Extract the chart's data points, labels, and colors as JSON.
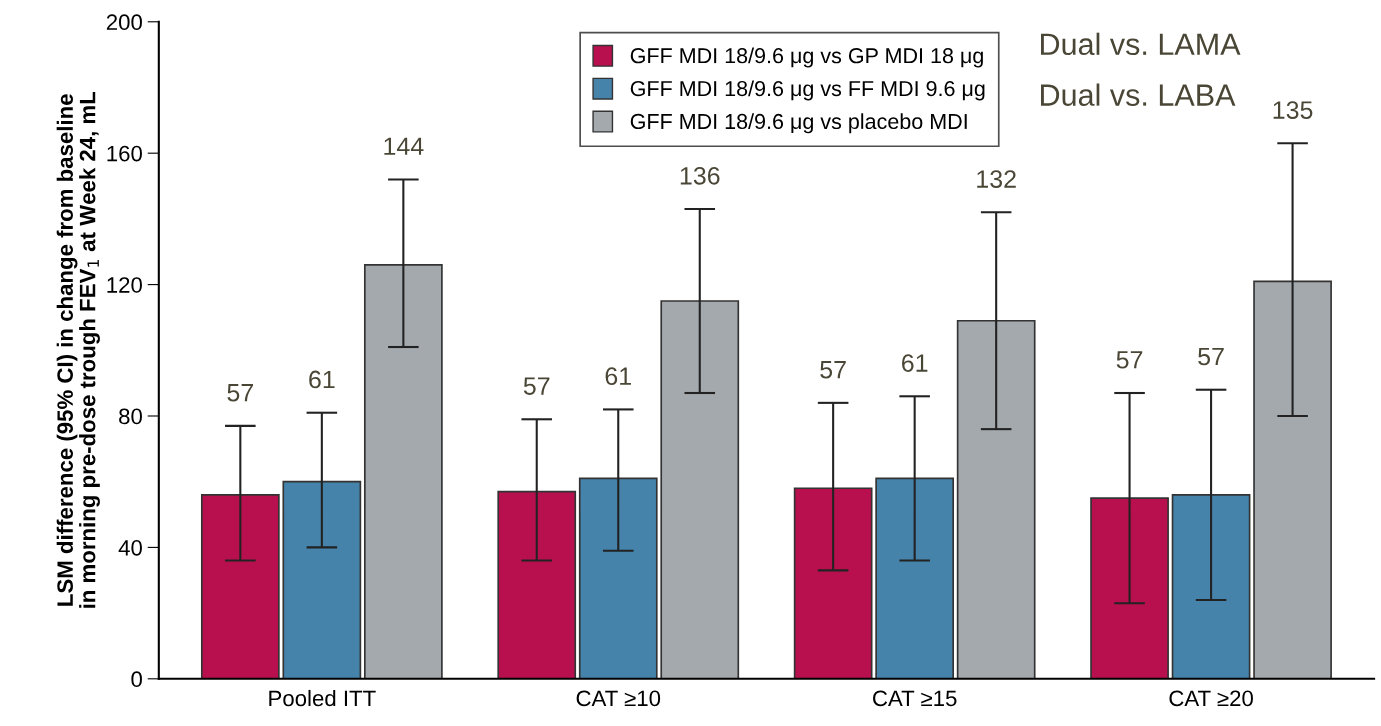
{
  "chart_data": {
    "type": "bar",
    "ylabel": "LSM difference (95% CI) in change from baseline\nin morning pre-dose trough FEV$_{1}$ at Week 24, mL",
    "categories": [
      "Pooled ITT",
      "CAT ≥10",
      "CAT ≥15",
      "CAT ≥20"
    ],
    "series": [
      {
        "name": "GFF MDI 18/9.6 μg vs GP MDI 18 μg",
        "color": "#b8104e",
        "values": [
          56,
          57,
          58,
          55
        ],
        "errors": [
          [
            36,
            77
          ],
          [
            36,
            79
          ],
          [
            33,
            84
          ],
          [
            23,
            87
          ]
        ]
      },
      {
        "name": "GFF MDI 18/9.6 μg vs FF MDI 9.6 μg",
        "color": "#4583ab",
        "values": [
          60,
          61,
          61,
          56
        ],
        "errors": [
          [
            40,
            81
          ],
          [
            39,
            82
          ],
          [
            36,
            86
          ],
          [
            24,
            88
          ]
        ]
      },
      {
        "name": "GFF MDI 18/9.6 μg vs placebo MDI",
        "color": "#a4a9ad",
        "values": [
          126,
          115,
          109,
          121
        ],
        "errors": [
          [
            101,
            152
          ],
          [
            87,
            143
          ],
          [
            76,
            142
          ],
          [
            80,
            163
          ]
        ]
      }
    ],
    "ylim": [
      0,
      200
    ],
    "yticks": [
      0,
      40,
      80,
      120,
      160,
      200
    ],
    "grid": false,
    "legend": "top right",
    "annotations": [
      "Dual vs. LAMA",
      "Dual vs. LABA",
      "57",
      "61",
      "144",
      "57",
      "61",
      "136",
      "57",
      "61",
      "132",
      "57",
      "57",
      "135"
    ]
  }
}
